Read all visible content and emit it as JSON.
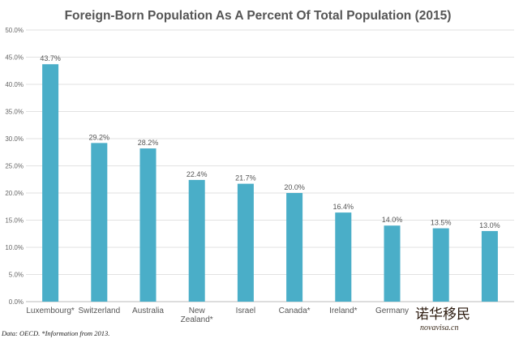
{
  "chart_data": {
    "type": "bar",
    "title": "Foreign-Born Population As A Percent Of Total Population (2015)",
    "categories": [
      "Luxembourg*",
      "Switzerland",
      "Australia",
      "New Zealand*",
      "Israel",
      "Canada*",
      "Ireland*",
      "Germany",
      "",
      ""
    ],
    "values": [
      43.7,
      29.2,
      28.2,
      22.4,
      21.7,
      20.0,
      16.4,
      14.0,
      13.5,
      13.0
    ],
    "value_labels": [
      "43.7%",
      "29.2%",
      "28.2%",
      "22.4%",
      "21.7%",
      "20.0%",
      "16.4%",
      "14.0%",
      "13.5%",
      "13.0%"
    ],
    "ylim": [
      0,
      50
    ],
    "yticks": [
      "0.0%",
      "5.0%",
      "10.0%",
      "15.0%",
      "20.0%",
      "25.0%",
      "30.0%",
      "35.0%",
      "40.0%",
      "45.0%",
      "50.0%"
    ],
    "xlabel": "",
    "ylabel": "",
    "grid": true,
    "bar_color": "#4aaec8",
    "source": "Data: OECD. *Information from 2013."
  },
  "watermark": {
    "chinese": "诺华移民",
    "latin": "novavisa.cn"
  }
}
